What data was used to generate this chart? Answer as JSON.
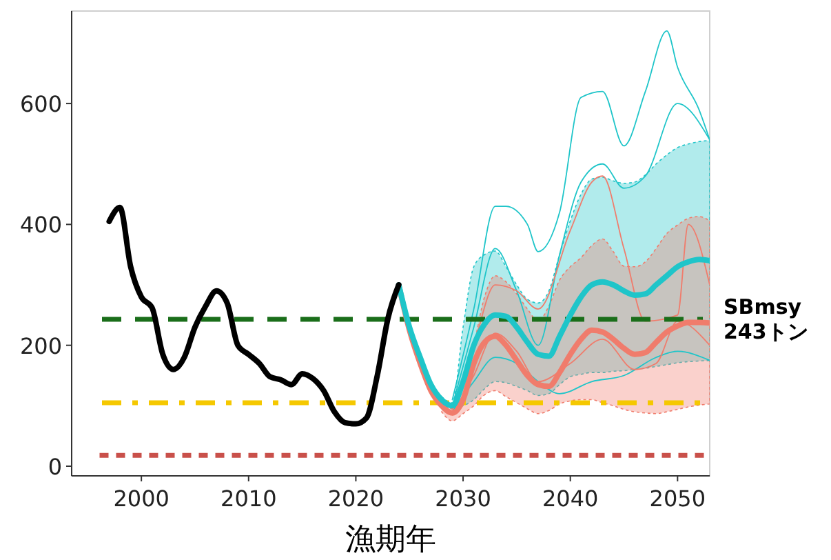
{
  "chart_data": {
    "type": "line",
    "xlabel": "漁期年",
    "xlim": [
      1993.5,
      2053
    ],
    "xticks": [
      2000,
      2010,
      2020,
      2030,
      2040,
      2050
    ],
    "ylim": [
      -16,
      753
    ],
    "yticks": [
      0,
      200,
      400,
      600
    ],
    "grid": false,
    "marker": "none",
    "series": [
      {
        "color": "#000000",
        "x": [
          1997,
          1998,
          1999,
          2000,
          2001,
          2002,
          2003,
          2004,
          2005,
          2006,
          2007,
          2008,
          2009,
          2010,
          2011,
          2012,
          2013,
          2014,
          2015,
          2016,
          2017,
          2018,
          2019,
          2020,
          2021,
          2022,
          2023,
          2024
        ],
        "values": [
          405,
          428,
          330,
          280,
          262,
          185,
          160,
          180,
          230,
          265,
          290,
          270,
          200,
          185,
          170,
          148,
          143,
          135,
          153,
          145,
          125,
          90,
          72,
          70,
          80,
          150,
          245,
          300
        ]
      },
      {
        "color": "#1fc5c9",
        "x": [
          2024,
          2025,
          2026,
          2027,
          2028,
          2029,
          2030,
          2031,
          2032,
          2033,
          2034,
          2035,
          2036,
          2037,
          2038,
          2039,
          2040,
          2041,
          2042,
          2043,
          2044,
          2045,
          2046,
          2047,
          2048,
          2049,
          2050,
          2051,
          2052,
          2053
        ],
        "values": [
          300,
          230,
          180,
          135,
          110,
          100,
          140,
          200,
          235,
          250,
          248,
          230,
          205,
          185,
          182,
          215,
          250,
          280,
          300,
          305,
          300,
          290,
          283,
          285,
          300,
          315,
          330,
          338,
          342,
          340
        ],
        "lower": [
          null,
          null,
          null,
          null,
          105,
          95,
          100,
          110,
          128,
          140,
          138,
          132,
          125,
          117,
          120,
          135,
          148,
          152,
          155,
          155,
          157,
          158,
          160,
          162,
          165,
          168,
          171,
          173,
          174,
          175
        ],
        "upper": [
          null,
          null,
          null,
          null,
          115,
          105,
          230,
          330,
          350,
          356,
          330,
          300,
          276,
          270,
          290,
          350,
          406,
          450,
          475,
          478,
          472,
          468,
          470,
          482,
          500,
          515,
          527,
          533,
          537,
          539
        ]
      },
      {
        "color": "#f07c6c",
        "x": [
          2024,
          2025,
          2026,
          2027,
          2028,
          2029,
          2030,
          2031,
          2032,
          2033,
          2034,
          2035,
          2036,
          2037,
          2038,
          2039,
          2040,
          2041,
          2042,
          2043,
          2044,
          2045,
          2046,
          2047,
          2048,
          2049,
          2050,
          2051,
          2052,
          2053
        ],
        "values": [
          300,
          225,
          170,
          125,
          100,
          88,
          110,
          170,
          205,
          215,
          200,
          175,
          150,
          135,
          132,
          155,
          185,
          210,
          225,
          222,
          210,
          195,
          185,
          188,
          205,
          222,
          232,
          238,
          238,
          237
        ],
        "lower": [
          null,
          null,
          null,
          null,
          90,
          75,
          87,
          100,
          118,
          125,
          115,
          105,
          95,
          87,
          92,
          103,
          108,
          110,
          110,
          105,
          100,
          94,
          90,
          88,
          87,
          90,
          94,
          98,
          101,
          103
        ],
        "upper": [
          null,
          null,
          null,
          null,
          105,
          95,
          130,
          200,
          280,
          315,
          305,
          285,
          260,
          240,
          265,
          308,
          330,
          345,
          365,
          376,
          355,
          331,
          330,
          338,
          360,
          385,
          399,
          410,
          413,
          406
        ]
      },
      {
        "color": "#1fc5c9",
        "x": [
          2029,
          2031,
          2033,
          2034,
          2036,
          2037,
          2039,
          2041,
          2043,
          2045,
          2047,
          2049,
          2050,
          2052,
          2053
        ],
        "values": [
          110,
          260,
          430,
          430,
          400,
          355,
          420,
          610,
          620,
          530,
          620,
          720,
          660,
          590,
          540
        ]
      },
      {
        "color": "#1fc5c9",
        "x": [
          2029,
          2031,
          2033,
          2035,
          2037,
          2039,
          2041,
          2043,
          2045,
          2047,
          2050,
          2053
        ],
        "values": [
          100,
          230,
          360,
          290,
          200,
          350,
          470,
          500,
          460,
          480,
          600,
          540
        ]
      },
      {
        "color": "#1fc5c9",
        "x": [
          2029,
          2031,
          2033,
          2035,
          2037,
          2039,
          2042,
          2045,
          2048,
          2050,
          2053
        ],
        "values": [
          90,
          140,
          180,
          170,
          140,
          120,
          140,
          150,
          180,
          190,
          175
        ]
      },
      {
        "color": "#f07c6c",
        "x": [
          2029,
          2031,
          2033,
          2035,
          2037,
          2040,
          2042,
          2043,
          2045,
          2047,
          2050,
          2051,
          2053
        ],
        "values": [
          90,
          200,
          300,
          290,
          260,
          390,
          470,
          480,
          360,
          240,
          250,
          400,
          300
        ]
      },
      {
        "color": "#f07c6c",
        "x": [
          2029,
          2031,
          2033,
          2035,
          2037,
          2040,
          2043,
          2046,
          2048,
          2050,
          2053
        ],
        "values": [
          85,
          150,
          220,
          190,
          140,
          170,
          210,
          160,
          170,
          240,
          200
        ]
      }
    ],
    "ref_lines": [
      {
        "axis": "y",
        "value": 243,
        "label": "SBmsy\n243トン",
        "color": "#1a6e1a",
        "line_style": "dashed"
      },
      {
        "axis": "y",
        "value": 105,
        "color": "#f5c800",
        "line_style": "dashdot"
      },
      {
        "axis": "y",
        "value": 18,
        "color": "#c9504a",
        "line_style": "dotted"
      }
    ]
  }
}
